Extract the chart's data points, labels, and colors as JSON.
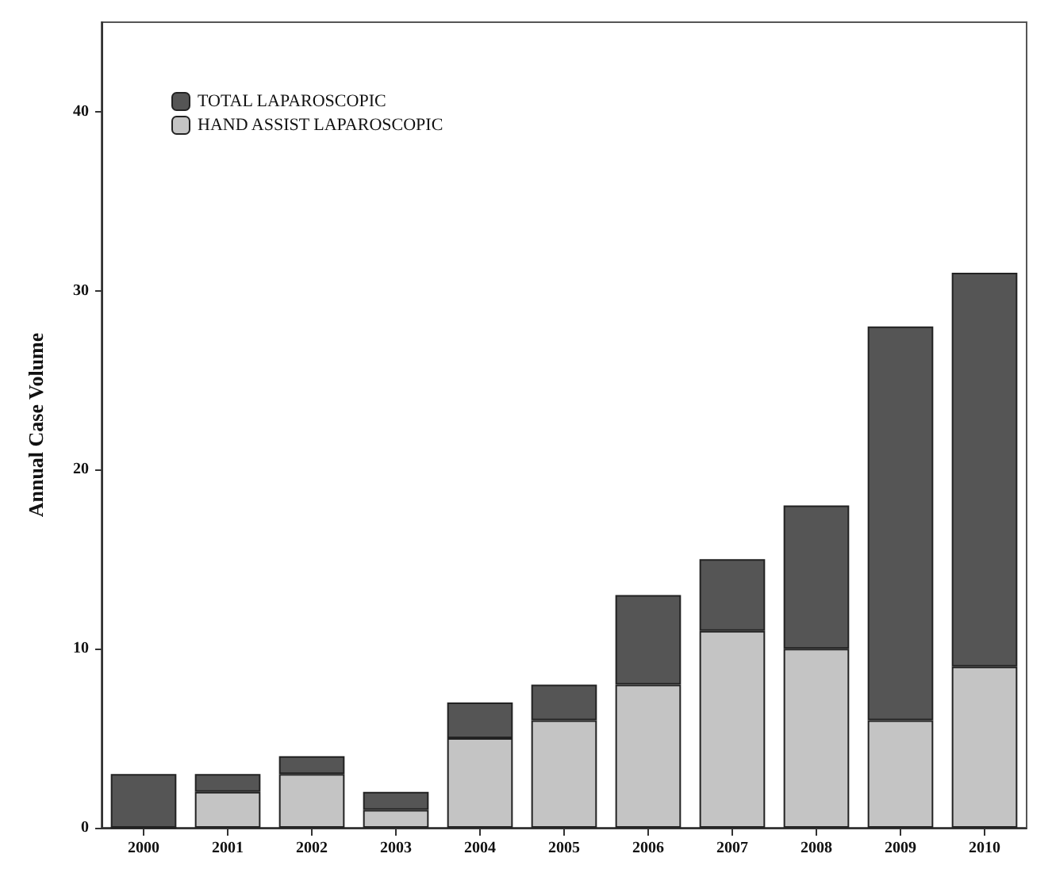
{
  "chart_data": {
    "type": "bar",
    "ylabel": "Annual Case Volume",
    "categories": [
      "2000",
      "2001",
      "2002",
      "2003",
      "2004",
      "2005",
      "2006",
      "2007",
      "2008",
      "2009",
      "2010"
    ],
    "stacked": true,
    "series": [
      {
        "name": "HAND ASSIST LAPAROSCOPIC",
        "color": "#c4c4c4",
        "values": [
          0,
          2,
          3,
          1,
          5,
          6,
          8,
          11,
          10,
          6,
          9
        ]
      },
      {
        "name": "TOTAL LAPAROSCOPIC",
        "color": "#555555",
        "values": [
          3,
          1,
          1,
          1,
          2,
          2,
          5,
          4,
          8,
          22,
          22
        ]
      }
    ],
    "ylim": [
      0,
      45
    ],
    "yticks": [
      0,
      10,
      20,
      30,
      40
    ],
    "grid": false,
    "legend": "top left"
  }
}
